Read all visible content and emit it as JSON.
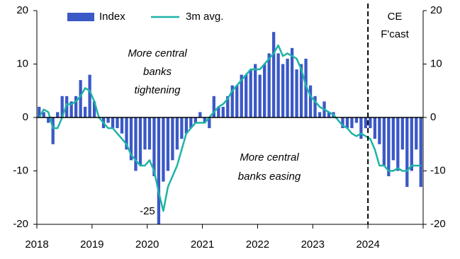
{
  "chart_data": {
    "type": "bar",
    "categories": [
      "2018",
      null,
      null,
      null,
      null,
      null,
      null,
      null,
      null,
      null,
      null,
      null,
      "2019",
      null,
      null,
      null,
      null,
      null,
      null,
      null,
      null,
      null,
      null,
      null,
      "2020",
      null,
      null,
      null,
      null,
      null,
      null,
      null,
      null,
      null,
      null,
      null,
      "2021",
      null,
      null,
      null,
      null,
      null,
      null,
      null,
      null,
      null,
      null,
      null,
      "2022",
      null,
      null,
      null,
      null,
      null,
      null,
      null,
      null,
      null,
      null,
      null,
      "2023",
      null,
      null,
      null,
      null,
      null,
      null,
      null,
      null,
      null,
      null,
      null,
      "2024",
      null,
      null,
      null,
      null,
      null,
      null,
      null,
      null,
      null,
      null,
      null
    ],
    "series": [
      {
        "name": "Index",
        "type": "bar",
        "color": "#3a58c6",
        "values": [
          2,
          1,
          -1,
          -5,
          1,
          4,
          4,
          3,
          4,
          7,
          2,
          8,
          3,
          0,
          -2,
          -1,
          -2,
          -2,
          -3,
          -6,
          -8,
          -10,
          -9,
          -6,
          -6,
          -11,
          -25,
          -12,
          -10,
          -8,
          -6,
          -4,
          -3,
          -2,
          -1,
          1,
          -1,
          -2,
          4,
          2,
          2,
          4,
          6,
          6,
          8,
          8,
          9,
          10,
          8,
          10,
          12,
          16,
          12,
          10,
          11,
          13,
          9,
          10,
          11,
          6,
          4,
          1,
          3,
          1,
          1,
          0,
          -2,
          -2,
          -2,
          -1,
          -4,
          -2,
          -2,
          -4,
          -5,
          -9,
          -11,
          -8,
          -10,
          -6,
          -13,
          -10,
          -6,
          -13
        ]
      },
      {
        "name": "3m avg.",
        "type": "line",
        "color": "#1db3a6",
        "values": [
          0,
          1.5,
          1,
          -2,
          -2,
          0,
          2.5,
          2.5,
          3,
          4,
          5.5,
          5,
          3,
          0,
          -1,
          -2,
          -2,
          -3,
          -4,
          -5,
          -7,
          -8,
          -9,
          -9,
          -8,
          -10,
          -14,
          -17.5,
          -13,
          -11,
          -9,
          -6,
          -3,
          -2,
          -1,
          -1,
          -1,
          0,
          1,
          2,
          2.5,
          3.5,
          5,
          6,
          7,
          8,
          9,
          9,
          9,
          10,
          11,
          12,
          13.5,
          11.5,
          12,
          11.5,
          11,
          9,
          6,
          4,
          3,
          2,
          1.5,
          1,
          0.5,
          -0.5,
          -1.5,
          -2,
          -3,
          -3.5,
          -3,
          -3.5,
          -4,
          -6,
          -9,
          -9,
          -10,
          -10,
          -9.5,
          -10,
          -10,
          -9,
          -9,
          -9
        ]
      }
    ],
    "ylim": [
      -20,
      20
    ],
    "yticks": [
      -20,
      -10,
      0,
      10,
      20
    ],
    "y2lim": [
      -20,
      20
    ],
    "y2ticks": [
      -20,
      -10,
      0,
      10,
      20
    ],
    "annotations": [
      {
        "lines": [
          "More central",
          "banks",
          "tightening"
        ]
      },
      {
        "lines": [
          "More central",
          "banks easing"
        ]
      },
      {
        "lines": [
          "CE",
          "F'cast"
        ]
      }
    ]
  }
}
